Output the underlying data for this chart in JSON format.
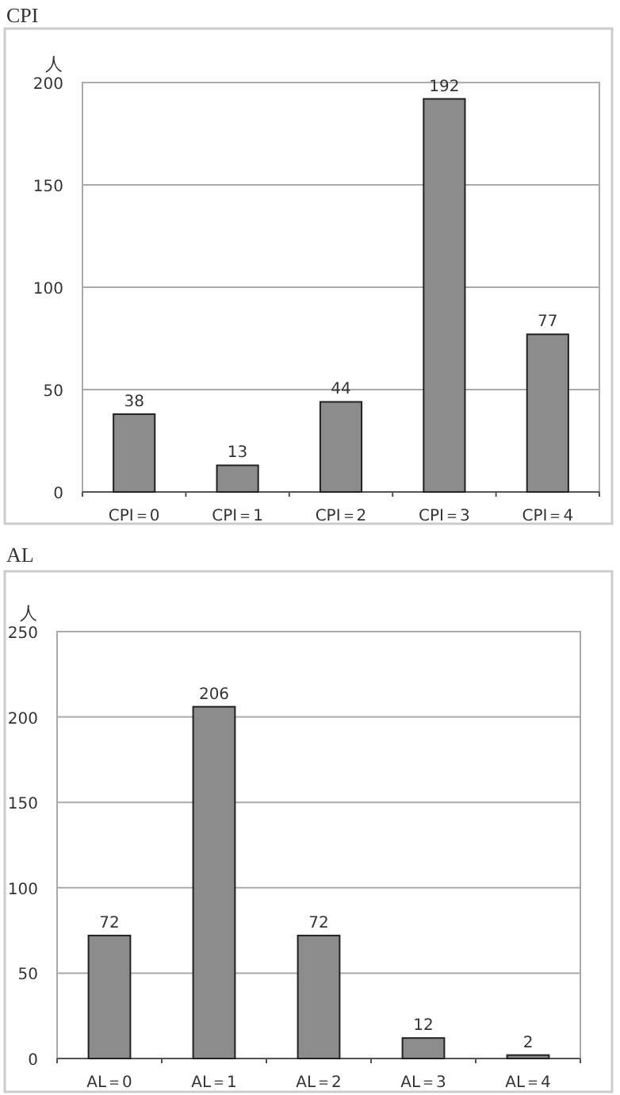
{
  "chart_data": [
    {
      "type": "bar",
      "title": "CPI",
      "ylabel": "人",
      "categories": [
        "CPI＝0",
        "CPI＝1",
        "CPI＝2",
        "CPI＝3",
        "CPI＝4"
      ],
      "values": [
        38,
        13,
        44,
        192,
        77
      ],
      "color": "#8c8c8c",
      "ylim": [
        0,
        200
      ],
      "yticks": [
        0,
        50,
        100,
        150,
        200
      ],
      "grid": "y",
      "data_labels": true
    },
    {
      "type": "bar",
      "title": "AL",
      "ylabel": "人",
      "categories": [
        "AL＝0",
        "AL＝1",
        "AL＝2",
        "AL＝3",
        "AL＝4"
      ],
      "values": [
        72,
        206,
        72,
        12,
        2
      ],
      "color": "#8c8c8c",
      "ylim": [
        0,
        250
      ],
      "yticks": [
        0,
        50,
        100,
        150,
        200,
        250
      ],
      "grid": "y",
      "data_labels": true
    }
  ]
}
